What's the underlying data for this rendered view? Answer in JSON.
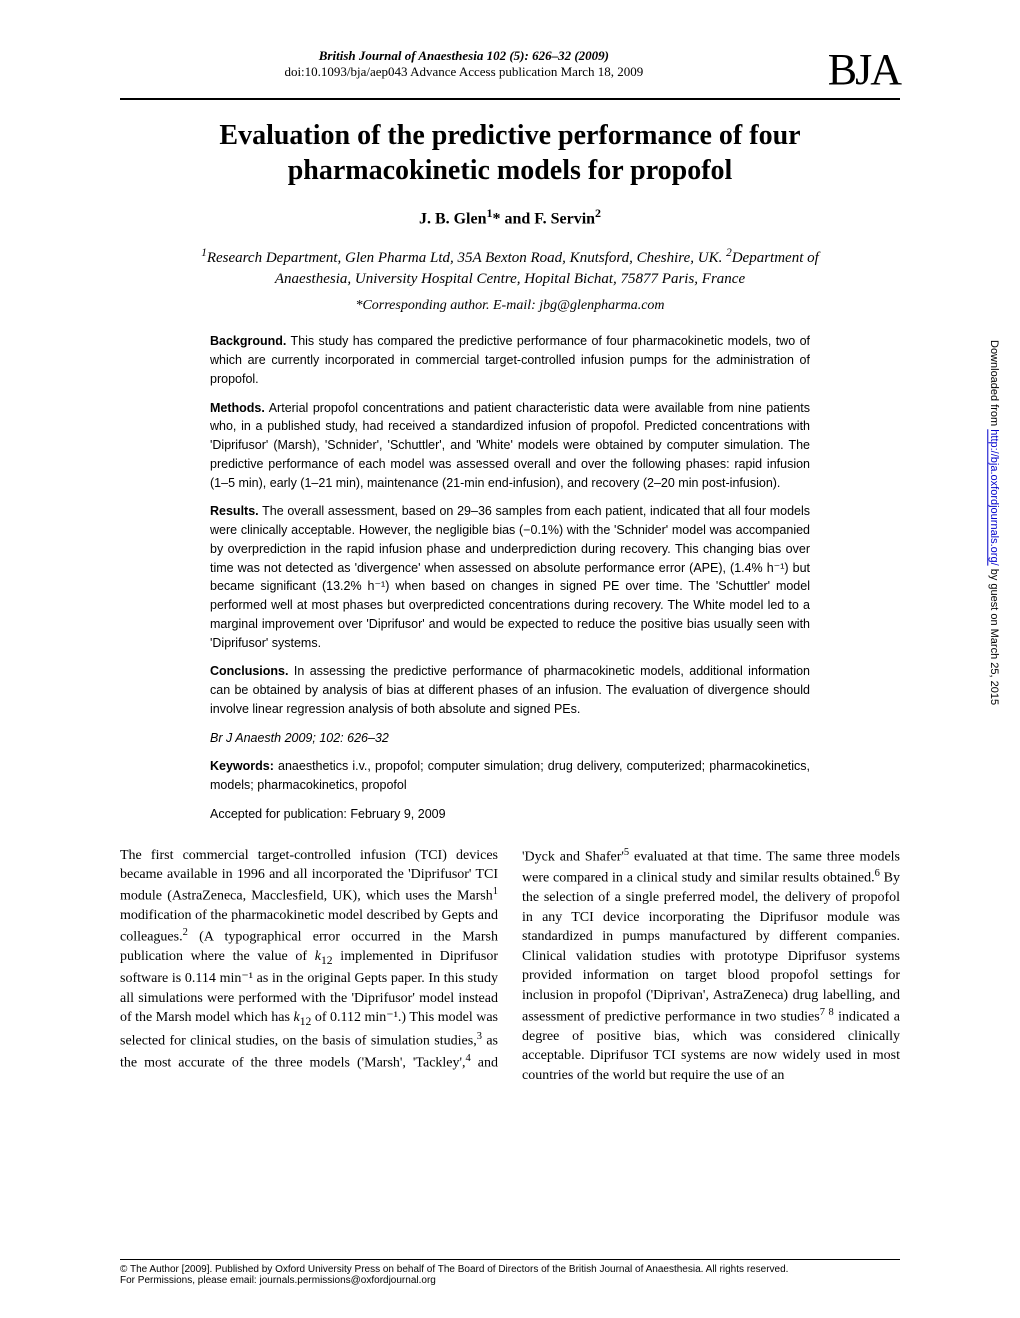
{
  "header": {
    "journal_line": "British Journal of Anaesthesia 102 (5): 626–32 (2009)",
    "doi_line": "doi:10.1093/bja/aep043   Advance Access publication March 18, 2009",
    "logo_text": "BJA"
  },
  "title": "Evaluation of the predictive performance of four pharmacokinetic models for propofol",
  "authors_html": "J. B. Glen<sup>1</sup>* and F. Servin<sup>2</sup>",
  "affiliations_html": "<sup>1</sup>Research Department, Glen Pharma Ltd, 35A Bexton Road, Knutsford, Cheshire, UK. <sup>2</sup>Department of Anaesthesia, University Hospital Centre, Hopital Bichat, 75877 Paris, France",
  "corresponding": "*Corresponding author. E-mail: jbg@glenpharma.com",
  "abstract": {
    "background_label": "Background.",
    "background": " This study has compared the predictive performance of four pharmacokinetic models, two of which are currently incorporated in commercial target-controlled infusion pumps for the administration of propofol.",
    "methods_label": "Methods.",
    "methods": " Arterial propofol concentrations and patient characteristic data were available from nine patients who, in a published study, had received a standardized infusion of propofol. Predicted concentrations with 'Diprifusor' (Marsh), 'Schnider', 'Schuttler', and 'White' models were obtained by computer simulation. The predictive performance of each model was assessed overall and over the following phases: rapid infusion (1–5 min), early (1–21 min), maintenance (21-min end-infusion), and recovery (2–20 min post-infusion).",
    "results_label": "Results.",
    "results": " The overall assessment, based on 29–36 samples from each patient, indicated that all four models were clinically acceptable. However, the negligible bias (−0.1%) with the 'Schnider' model was accompanied by overprediction in the rapid infusion phase and underprediction during recovery. This changing bias over time was not detected as 'divergence' when assessed on absolute performance error (APE), (1.4% h⁻¹) but became significant (13.2% h⁻¹) when based on changes in signed PE over time. The 'Schuttler' model performed well at most phases but overpredicted concentrations during recovery. The White model led to a marginal improvement over 'Diprifusor' and would be expected to reduce the positive bias usually seen with 'Diprifusor' systems.",
    "conclusions_label": "Conclusions.",
    "conclusions": " In assessing the predictive performance of pharmacokinetic models, additional information can be obtained by analysis of bias at different phases of an infusion. The evaluation of divergence should involve linear regression analysis of both absolute and signed PEs.",
    "citation": "Br J Anaesth 2009; 102: 626–32",
    "keywords_label": "Keywords:",
    "keywords": " anaesthetics i.v., propofol; computer simulation; drug delivery, computerized; pharmacokinetics, models; pharmacokinetics, propofol",
    "accepted": "Accepted for publication: February 9, 2009"
  },
  "body_html": "The first commercial target-controlled infusion (TCI) devices became available in 1996 and all incorporated the 'Diprifusor' TCI module (AstraZeneca, Macclesfield, UK), which uses the Marsh<sup>1</sup> modification of the pharmacokinetic model described by Gepts and colleagues.<sup>2</sup> (A typographical error occurred in the Marsh publication where the value of <i>k</i><sub>12</sub> implemented in Diprifusor software is 0.114 min⁻¹ as in the original Gepts paper. In this study all simulations were performed with the 'Diprifusor' model instead of the Marsh model which has <i>k</i><sub>12</sub> of 0.112 min⁻¹.) This model was selected for clinical studies, on the basis of simulation studies,<sup>3</sup> as the most accurate of the three models ('Marsh', 'Tackley',<sup>4</sup> and 'Dyck and Shafer'<sup>5</sup> evaluated at that time. The same three models were compared in a clinical study and similar results obtained.<sup>6</sup> By the selection of a single preferred model, the delivery of propofol in any TCI device incorporating the Diprifusor module was standardized in pumps manufactured by different companies. Clinical validation studies with prototype Diprifusor systems provided information on target blood propofol settings for inclusion in propofol ('Diprivan', AstraZeneca) drug labelling, and assessment of predictive performance in two studies<sup>7 8</sup> indicated a degree of positive bias, which was considered clinically acceptable. Diprifusor TCI systems are now widely used in most countries of the world but require the use of an",
  "side_note_html": "Downloaded from <a href=\"#\">http://bja.oxfordjournals.org/</a> by guest on March 25, 2015",
  "footer": {
    "line1": "© The Author [2009]. Published by Oxford University Press on behalf of The Board of Directors of the British Journal of Anaesthesia. All rights reserved.",
    "line2": "For Permissions, please email: journals.permissions@oxfordjournal.org"
  },
  "colors": {
    "text": "#000000",
    "background": "#ffffff",
    "link": "#0000cc",
    "rule": "#000000"
  },
  "typography": {
    "body_family": "Times New Roman",
    "abstract_family": "Arial",
    "title_size_pt": 21,
    "body_size_pt": 10.5,
    "abstract_size_pt": 9.5
  }
}
